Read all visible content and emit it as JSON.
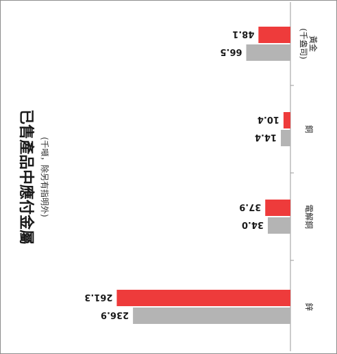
{
  "chart_data": {
    "type": "bar",
    "orientation": "horizontal",
    "title": "已售產品中應付金屬",
    "subtitle": "(千噸，除另有指明外)",
    "categories": [
      "鋅",
      "電解銅",
      "銅",
      "黃金\n(千盎司)"
    ],
    "series": [
      {
        "name": "",
        "color": "#b4b4b4",
        "values": [
          236.9,
          34.0,
          14.4,
          66.5
        ],
        "labels": [
          "236.9",
          "34.0",
          "14.4",
          "66.5"
        ]
      },
      {
        "name": "",
        "color": "#ee3b3b",
        "values": [
          261.3,
          37.9,
          10.4,
          48.1
        ],
        "labels": [
          "261.3",
          "37.9",
          "10.4",
          "48.1"
        ]
      }
    ],
    "xlim": [
      0,
      270
    ],
    "grid": false,
    "legend": "none",
    "rendered_rotation_deg": 180
  }
}
